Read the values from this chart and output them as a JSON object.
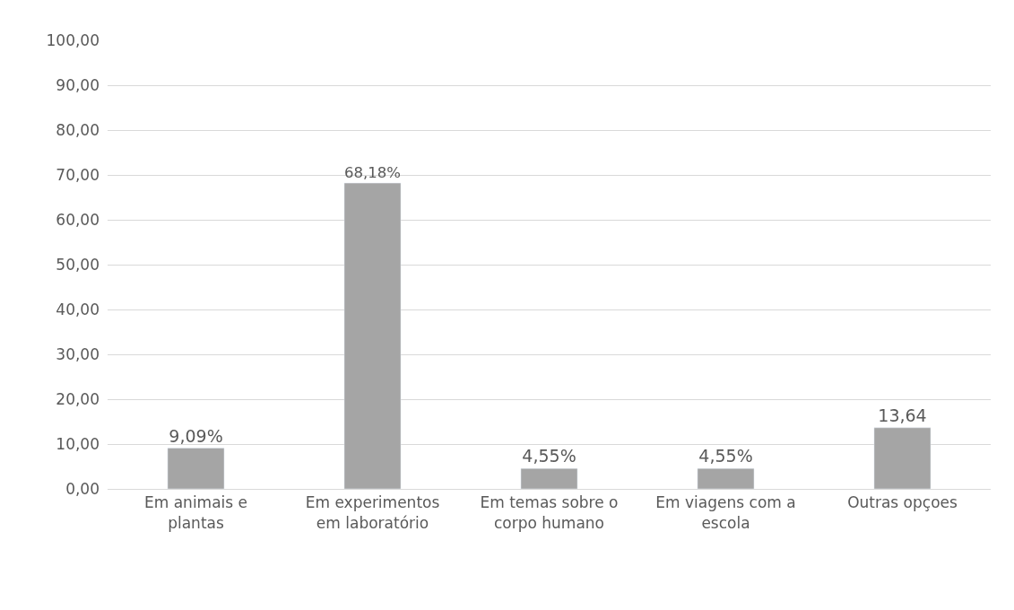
{
  "chart_data": {
    "type": "bar",
    "categories": [
      "Em animais e plantas",
      "Em experimentos em laboratório",
      "Em temas sobre o corpo humano",
      "Em viagens com a escola",
      "Outras opçoes"
    ],
    "values": [
      9.09,
      68.18,
      4.55,
      4.55,
      13.64
    ],
    "value_labels": [
      "9,09%",
      "68,18%",
      "4,55%",
      "4,55%",
      "13,64"
    ],
    "color": "#a5a5a5",
    "ylim": [
      0,
      100
    ],
    "yticks": [
      {
        "value": 0,
        "label": "0,00"
      },
      {
        "value": 10,
        "label": "10,00"
      },
      {
        "value": 20,
        "label": "20,00"
      },
      {
        "value": 30,
        "label": "30,00"
      },
      {
        "value": 40,
        "label": "40,00"
      },
      {
        "value": 50,
        "label": "50,00"
      },
      {
        "value": 60,
        "label": "60,00"
      },
      {
        "value": 70,
        "label": "70,00"
      },
      {
        "value": 80,
        "label": "80,00"
      },
      {
        "value": 90,
        "label": "90,00"
      },
      {
        "value": 100,
        "label": "100,00"
      }
    ],
    "grid": "y",
    "legend": false
  }
}
